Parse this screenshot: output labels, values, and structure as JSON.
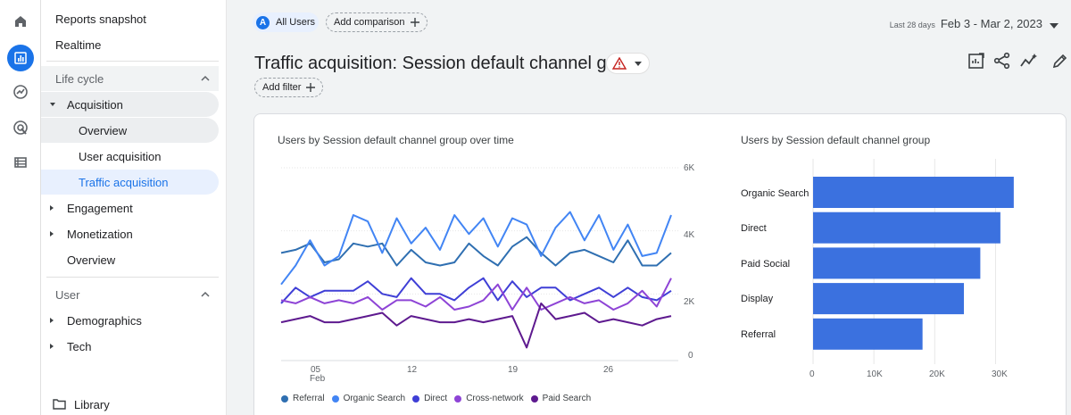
{
  "rail": {
    "icons": [
      "home-icon",
      "reports-icon",
      "explore-icon",
      "advertising-icon",
      "configure-icon"
    ]
  },
  "nav": {
    "reports_snapshot": "Reports snapshot",
    "realtime": "Realtime",
    "lifecycle": "Life cycle",
    "acquisition": "Acquisition",
    "overview": "Overview",
    "user_acquisition": "User acquisition",
    "traffic_acquisition": "Traffic acquisition",
    "engagement": "Engagement",
    "monetization": "Monetization",
    "overview2": "Overview",
    "user": "User",
    "demographics": "Demographics",
    "tech": "Tech",
    "library": "Library"
  },
  "top": {
    "avatar_letter": "A",
    "all_users": "All Users",
    "add_comparison": "Add comparison",
    "date_hint": "Last 28 days",
    "date_range": "Feb 3 - Mar 2, 2023",
    "title": "Traffic acquisition: Session default channel group",
    "add_filter": "Add filter"
  },
  "colors": {
    "referral": "#2f6fb1",
    "organic_search": "#4285f4",
    "direct": "#3f3fd6",
    "cross_network": "#8e44d6",
    "paid_search": "#5e1a8f",
    "bar": "#3b71df"
  },
  "chart_data": [
    {
      "type": "line",
      "title": "Users by Session default channel group over time",
      "y_ticks": [
        "6K",
        "4K",
        "2K",
        "0"
      ],
      "ylim": [
        0,
        6000
      ],
      "x_ticks": [
        {
          "day": 5,
          "label": "05",
          "sub": "Feb"
        },
        {
          "day": 12,
          "label": "12"
        },
        {
          "day": 19,
          "label": "19"
        },
        {
          "day": 26,
          "label": "26"
        }
      ],
      "x": [
        3,
        4,
        5,
        6,
        7,
        8,
        9,
        10,
        11,
        12,
        13,
        14,
        15,
        16,
        17,
        18,
        19,
        20,
        21,
        22,
        23,
        24,
        25,
        26,
        27,
        28,
        29,
        30
      ],
      "series": [
        {
          "name": "Referral",
          "color": "#2f6fb1",
          "values": [
            3300,
            3400,
            3600,
            3000,
            3100,
            3600,
            3500,
            3600,
            2900,
            3400,
            3000,
            2900,
            3000,
            3600,
            3200,
            2900,
            3500,
            3800,
            3300,
            2900,
            3300,
            3400,
            3200,
            3000,
            3700,
            2900,
            2900,
            3300
          ]
        },
        {
          "name": "Organic Search",
          "color": "#4285f4",
          "values": [
            2300,
            2900,
            3700,
            2900,
            3200,
            4500,
            4300,
            3300,
            4400,
            3600,
            4100,
            3400,
            4500,
            3900,
            4400,
            3500,
            4400,
            4200,
            3200,
            4100,
            4600,
            3700,
            4500,
            3400,
            4200,
            3200,
            3300,
            4500
          ]
        },
        {
          "name": "Direct",
          "color": "#3f3fd6",
          "values": [
            1700,
            2200,
            1900,
            2100,
            2100,
            2100,
            2400,
            2000,
            1900,
            2500,
            2000,
            2000,
            1800,
            2200,
            2500,
            1800,
            2400,
            1900,
            2200,
            2200,
            1800,
            2000,
            2200,
            1900,
            2200,
            1900,
            1800,
            2100
          ]
        },
        {
          "name": "Cross-network",
          "color": "#8e44d6",
          "values": [
            1800,
            1700,
            1900,
            1700,
            1800,
            1700,
            1900,
            1500,
            1800,
            1800,
            1600,
            1900,
            1500,
            1600,
            1800,
            2300,
            1500,
            2200,
            1500,
            1700,
            1900,
            1700,
            1800,
            1500,
            1700,
            2100,
            1600,
            2500
          ]
        },
        {
          "name": "Paid Search",
          "color": "#5e1a8f",
          "values": [
            1100,
            1200,
            1300,
            1100,
            1100,
            1200,
            1300,
            1400,
            1000,
            1300,
            1200,
            1100,
            1100,
            1200,
            1100,
            1200,
            1300,
            300,
            1700,
            1200,
            1300,
            1400,
            1100,
            1200,
            1100,
            1000,
            1200,
            1300
          ]
        }
      ]
    },
    {
      "type": "bar",
      "title": "Users by Session default channel group",
      "categories": [
        "Organic Search",
        "Direct",
        "Paid Social",
        "Display",
        "Referral"
      ],
      "values": [
        33000,
        30800,
        27500,
        24800,
        18000
      ],
      "xlim": [
        0,
        35000
      ],
      "x_ticks": [
        "0",
        "10K",
        "20K",
        "30K"
      ],
      "color": "#3b71df"
    }
  ]
}
